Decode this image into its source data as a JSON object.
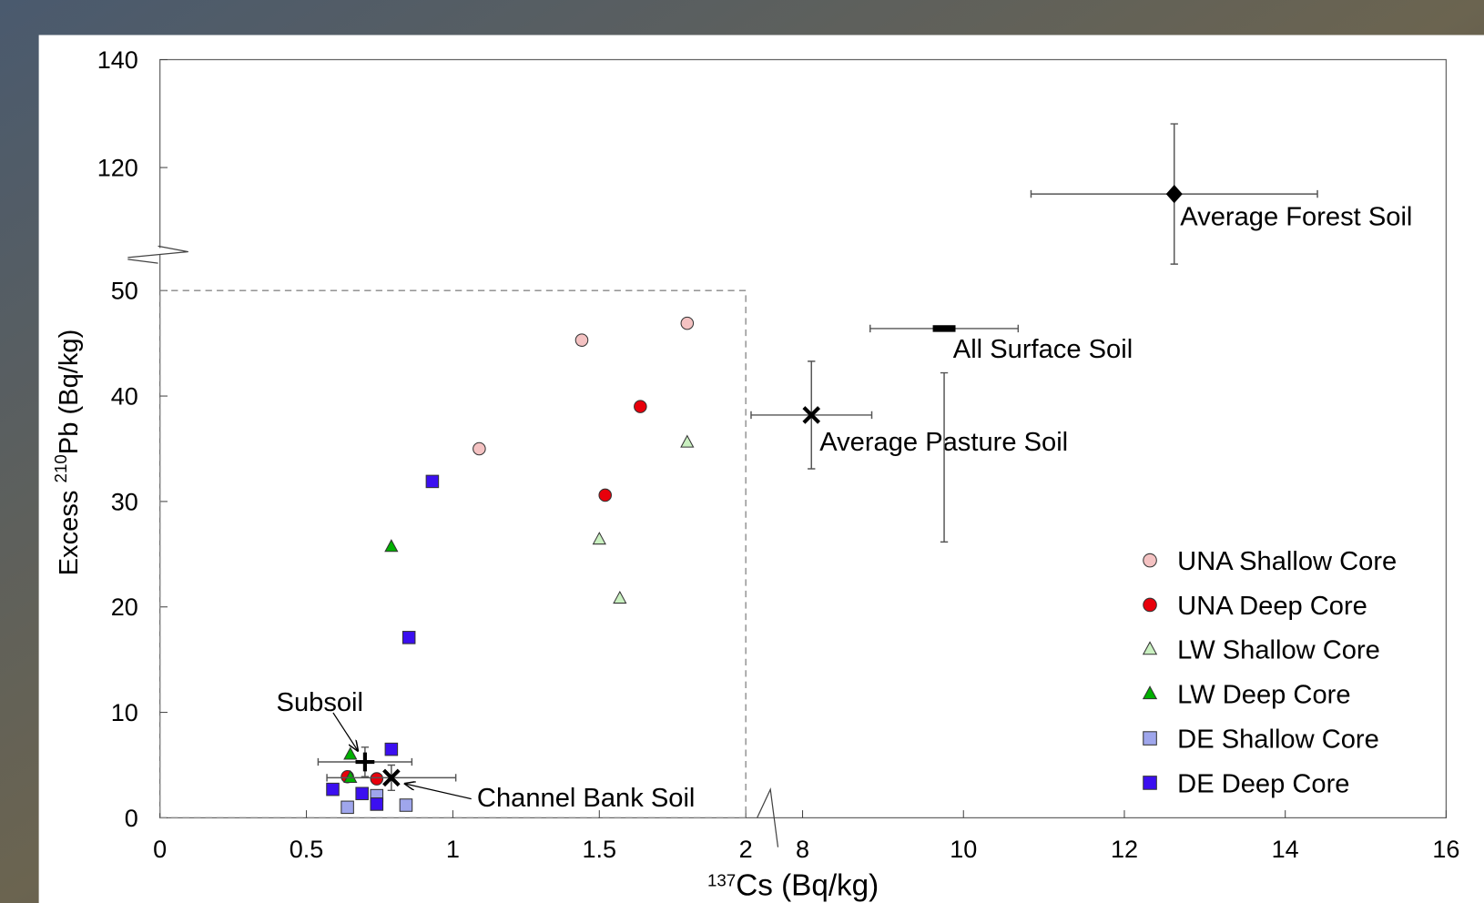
{
  "chart_data": {
    "type": "scatter",
    "x_label": {
      "sup": "137",
      "main": "Cs (Bq/kg)"
    },
    "y_label": {
      "prefix": "Excess ",
      "sup": "210",
      "main": "Pb (Bq/kg)"
    },
    "x_segments": [
      {
        "lim": [
          0,
          2
        ],
        "ticks": [
          0,
          0.5,
          1,
          1.5,
          2
        ]
      },
      {
        "lim": [
          7.6,
          16
        ],
        "ticks": [
          8,
          10,
          12,
          14,
          16
        ]
      }
    ],
    "y_segments": [
      {
        "lim": [
          0,
          50
        ],
        "ticks": [
          0,
          10,
          20,
          30,
          40,
          50
        ]
      },
      {
        "lim": [
          100,
          140
        ],
        "ticks": [
          120,
          140
        ]
      }
    ],
    "series": [
      {
        "name": "UNA Shallow Core",
        "marker": "circle",
        "color": "#f4c2c2",
        "x": [
          1.44,
          1.8,
          1.09
        ],
        "y": [
          45.3,
          46.9,
          35.0
        ]
      },
      {
        "name": "UNA Deep Core",
        "marker": "circle",
        "color": "#e8000b",
        "x": [
          1.64,
          1.52,
          0.64,
          0.74
        ],
        "y": [
          39.0,
          30.6,
          3.9,
          3.7
        ]
      },
      {
        "name": "LW Shallow Core",
        "marker": "triangle",
        "color": "#c9f0c0",
        "x": [
          1.8,
          1.5,
          1.57
        ],
        "y": [
          35.6,
          26.4,
          20.8
        ]
      },
      {
        "name": "LW Deep Core",
        "marker": "triangle",
        "color": "#00b000",
        "x": [
          0.79,
          0.65,
          0.65
        ],
        "y": [
          25.7,
          6.0,
          3.8
        ]
      },
      {
        "name": "DE Shallow Core",
        "marker": "square",
        "color": "#9fa6ec",
        "x": [
          0.64,
          0.74,
          0.84,
          0.74
        ],
        "y": [
          1.0,
          2.1,
          1.2,
          1.3
        ]
      },
      {
        "name": "DE Deep Core",
        "marker": "square",
        "color": "#3b0ff0",
        "x": [
          0.93,
          0.85,
          0.79,
          0.59,
          0.69,
          0.74
        ],
        "y": [
          31.9,
          17.1,
          6.5,
          2.7,
          2.3,
          1.3
        ]
      }
    ],
    "summary_points": [
      {
        "name": "Subsoil",
        "marker": "plus",
        "x": 0.7,
        "y": 5.3,
        "xerr": 0.16,
        "yerr": 1.4
      },
      {
        "name": "Channel Bank Soil",
        "marker": "cross",
        "x": 0.79,
        "y": 3.8,
        "xerr": 0.22,
        "yerr": 1.2
      },
      {
        "name": "Average Pasture Soil",
        "marker": "cross",
        "x": 8.11,
        "y": 38.2,
        "xerr": 0.75,
        "yerr": 5.1
      },
      {
        "name": "All Surface Soil",
        "marker": "dash",
        "x": 9.76,
        "y": 46.4,
        "xerr": 0.92,
        "yerr": 4.2
      },
      {
        "name": "Average Forest Soil",
        "marker": "diamond",
        "x": 12.62,
        "y": 115.1,
        "xerr": 1.78,
        "yerr": 13
      }
    ],
    "zoom_box": {
      "xlim": [
        0,
        2
      ],
      "ylim": [
        0,
        50
      ]
    }
  }
}
